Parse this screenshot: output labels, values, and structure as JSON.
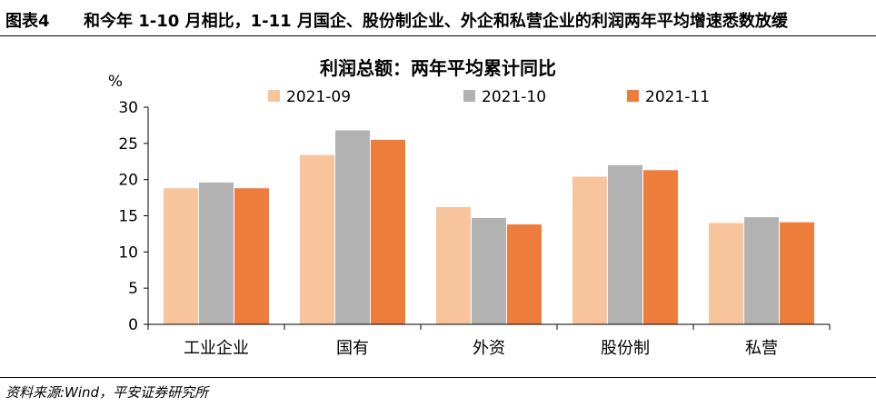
{
  "figure": {
    "label": "图表4",
    "title": "和今年 1-10 月相比，1-11 月国企、股份制企业、外企和私营企业的利润两年平均增速悉数放缓",
    "source": "资料来源:Wind，平安证券研究所"
  },
  "chart_data": {
    "type": "bar",
    "title": "利润总额：两年平均累计同比",
    "ylabel": "%",
    "ylim": [
      0,
      30
    ],
    "yticks": [
      0,
      5,
      10,
      15,
      20,
      25,
      30
    ],
    "grid": false,
    "legend_position": "top-center",
    "categories": [
      "工业企业",
      "国有",
      "外资",
      "股份制",
      "私营"
    ],
    "series": [
      {
        "name": "2021-09",
        "color": "#F8C49C",
        "values": [
          18.8,
          23.4,
          16.2,
          20.4,
          14.0
        ]
      },
      {
        "name": "2021-10",
        "color": "#B2B2B2",
        "values": [
          19.6,
          26.8,
          14.7,
          22.0,
          14.8
        ]
      },
      {
        "name": "2021-11",
        "color": "#EE7D3B",
        "values": [
          18.8,
          25.5,
          13.8,
          21.3,
          14.1
        ]
      }
    ]
  }
}
